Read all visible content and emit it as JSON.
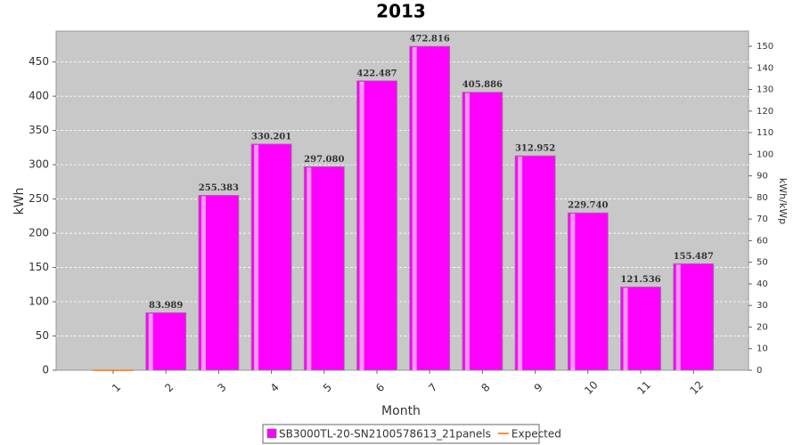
{
  "chart_data": {
    "type": "bar",
    "title": "2013",
    "x_label": "Month",
    "y_label": "kWh",
    "y2_label": "kWh/kWp",
    "categories": [
      "1",
      "2",
      "3",
      "4",
      "5",
      "6",
      "7",
      "8",
      "9",
      "10",
      "11",
      "12"
    ],
    "series": [
      {
        "name": "SB3000TL-20-SN2100578613_21panels",
        "color": "#ff00ff",
        "values": [
          null,
          83.989,
          255.383,
          330.201,
          297.08,
          422.487,
          472.816,
          405.886,
          312.952,
          229.74,
          121.536,
          155.487
        ],
        "value_labels": [
          null,
          "83.989",
          "255.383",
          "330.201",
          "297.080",
          "422.487",
          "472.816",
          "405.886",
          "312.952",
          "229.740",
          "121.536",
          "155.487"
        ]
      },
      {
        "name": "Expected",
        "color": "#ff8c3c",
        "type": "line",
        "values": [
          0,
          null,
          null,
          null,
          null,
          null,
          null,
          null,
          null,
          null,
          null,
          null
        ]
      }
    ],
    "ylim": [
      0,
      495
    ],
    "yticks": [
      0,
      50,
      100,
      150,
      200,
      250,
      300,
      350,
      400,
      450
    ],
    "y2lim": [
      0,
      157
    ],
    "y2ticks": [
      0,
      10,
      20,
      30,
      40,
      50,
      60,
      70,
      80,
      90,
      100,
      110,
      120,
      130,
      140,
      150
    ],
    "grid": true,
    "legend": "bottom"
  }
}
